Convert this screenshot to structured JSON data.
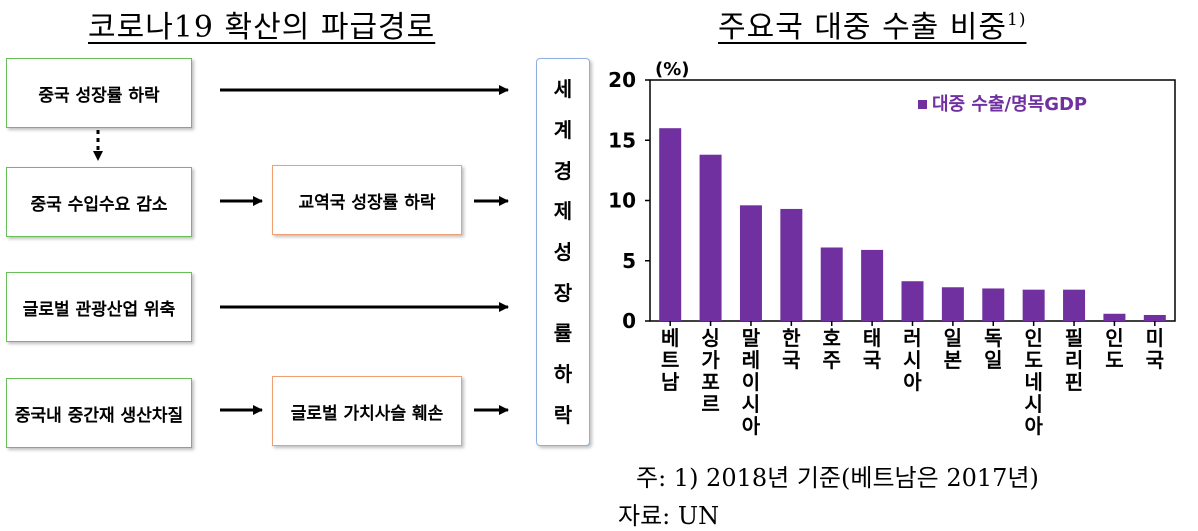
{
  "left_title": "코로나19 확산의 파급경로",
  "right_title": {
    "main": "주요국 대중 수출 비중",
    "sup": "1)"
  },
  "flow": {
    "boxes": {
      "china_growth": "중국 성장률 하락",
      "china_import": "중국 수입수요 감소",
      "tourism": "글로벌 관광산업 위축",
      "production": "중국내 중간재 생산차질",
      "trade_partner": "교역국 성장률 하락",
      "value_chain": "글로벌 가치사슬 훼손"
    },
    "world_box": [
      "세",
      "계",
      "경",
      "제",
      "성",
      "장",
      "률",
      "하",
      "락"
    ]
  },
  "chart_data": {
    "type": "bar",
    "ylabel": "(%)",
    "ylim": [
      0,
      20
    ],
    "yticks": [
      0,
      5,
      10,
      15,
      20
    ],
    "categories": [
      "베트남",
      "싱가포르",
      "말레이시아",
      "한국",
      "호주",
      "태국",
      "러시아",
      "일본",
      "독일",
      "인도네시아",
      "필리핀",
      "인도",
      "미국"
    ],
    "series": [
      {
        "name": "대중 수출/명목GDP",
        "values": [
          16.0,
          13.8,
          9.6,
          9.3,
          6.1,
          5.9,
          3.3,
          2.8,
          2.7,
          2.6,
          2.6,
          0.6,
          0.5
        ]
      }
    ],
    "legend_position": "top-right",
    "bar_color": "#7030a0"
  },
  "notes": {
    "note1": "주: 1) 2018년 기준(베트남은 2017년)",
    "note2": "자료: UN"
  }
}
